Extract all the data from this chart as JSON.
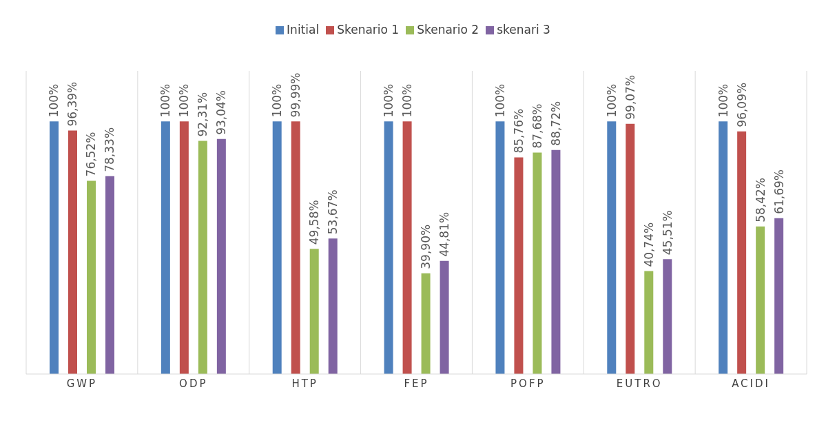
{
  "chart_data": {
    "type": "bar",
    "categories": [
      "GWP",
      "ODP",
      "HTP",
      "FEP",
      "POFP",
      "EUTRO",
      "ACIDI"
    ],
    "series": [
      {
        "name": "Initial",
        "color": "#4f81bd",
        "values": [
          100,
          100,
          100,
          100,
          100,
          100,
          100
        ],
        "value_labels": [
          "100%",
          "100%",
          "100%",
          "100%",
          "100%",
          "100%",
          "100%"
        ]
      },
      {
        "name": "Skenario 1",
        "color": "#c0504d",
        "values": [
          96.39,
          100,
          99.99,
          100,
          85.76,
          99.07,
          96.09
        ],
        "value_labels": [
          "96,39%",
          "100%",
          "99,99%",
          "100%",
          "85,76%",
          "99,07%",
          "96,09%"
        ]
      },
      {
        "name": "Skenario 2",
        "color": "#9bbb59",
        "values": [
          76.52,
          92.31,
          49.58,
          39.9,
          87.68,
          40.74,
          58.42
        ],
        "value_labels": [
          "76,52%",
          "92,31%",
          "49,58%",
          "39,90%",
          "87,68%",
          "40,74%",
          "58,42%"
        ]
      },
      {
        "name": "skenari 3",
        "color": "#8064a2",
        "values": [
          78.33,
          93.04,
          53.67,
          44.81,
          88.72,
          45.51,
          61.69
        ],
        "value_labels": [
          "78,33%",
          "93,04%",
          "53,67%",
          "44,81%",
          "88,72%",
          "45,51%",
          "61,69%"
        ]
      }
    ],
    "ylim": [
      0,
      120
    ],
    "tick_labels": "x",
    "grid": "x",
    "legend": "top"
  }
}
